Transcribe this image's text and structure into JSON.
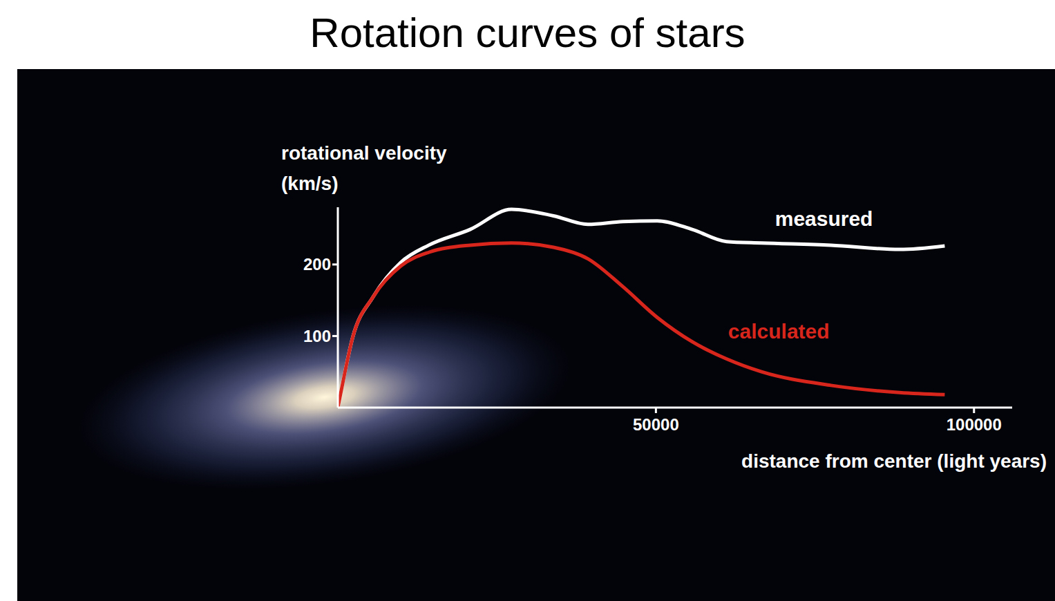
{
  "chart_data": {
    "type": "line",
    "title": "Rotation curves of stars",
    "x_label": "distance from center (light years)",
    "y_label": "rotational velocity (km/s)",
    "x": [
      0,
      650,
      2300,
      5560,
      9900,
      14300,
      20800,
      27300,
      33900,
      39300,
      44800,
      50200,
      55700,
      61100,
      66600,
      77500,
      88300,
      95400
    ],
    "series": [
      {
        "name": "measured",
        "color": "#ffffff",
        "values": [
          0,
          29,
          97,
          155,
          203,
          227,
          249,
          277,
          268,
          256,
          260,
          261,
          249,
          232,
          230,
          227,
          221,
          226
        ]
      },
      {
        "name": "calculated",
        "color": "#d9261c",
        "values": [
          0,
          29,
          97,
          155,
          198,
          217,
          227,
          230,
          224,
          208,
          169,
          126,
          92,
          68,
          50,
          31,
          21,
          18
        ]
      }
    ],
    "xlim": [
      0,
      106000
    ],
    "ylim": [
      0,
      280
    ],
    "xticks": [
      50000,
      100000
    ],
    "yticks": [
      100,
      200
    ]
  }
}
